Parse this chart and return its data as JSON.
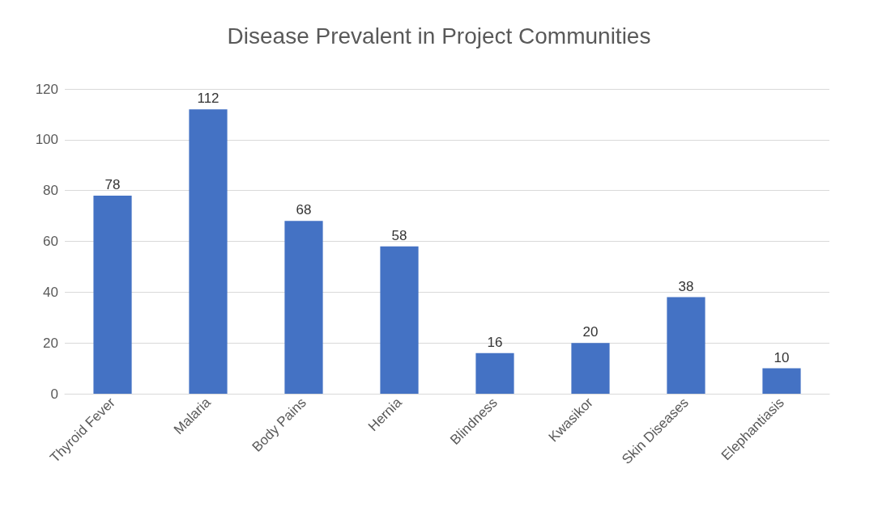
{
  "chart_data": {
    "type": "bar",
    "title": "Disease Prevalent in Project Communities",
    "categories": [
      "Thyroid Fever",
      "Malaria",
      "Body Pains",
      "Hernia",
      "Blindness",
      "Kwasikor",
      "Skin Diseases",
      "Elephantiasis"
    ],
    "values": [
      78,
      112,
      68,
      58,
      16,
      20,
      38,
      10
    ],
    "color": "#4472c4",
    "ylim": [
      0,
      120
    ],
    "yticks": [
      0,
      20,
      40,
      60,
      80,
      100,
      120
    ],
    "grid": "y",
    "data_labels": true
  }
}
